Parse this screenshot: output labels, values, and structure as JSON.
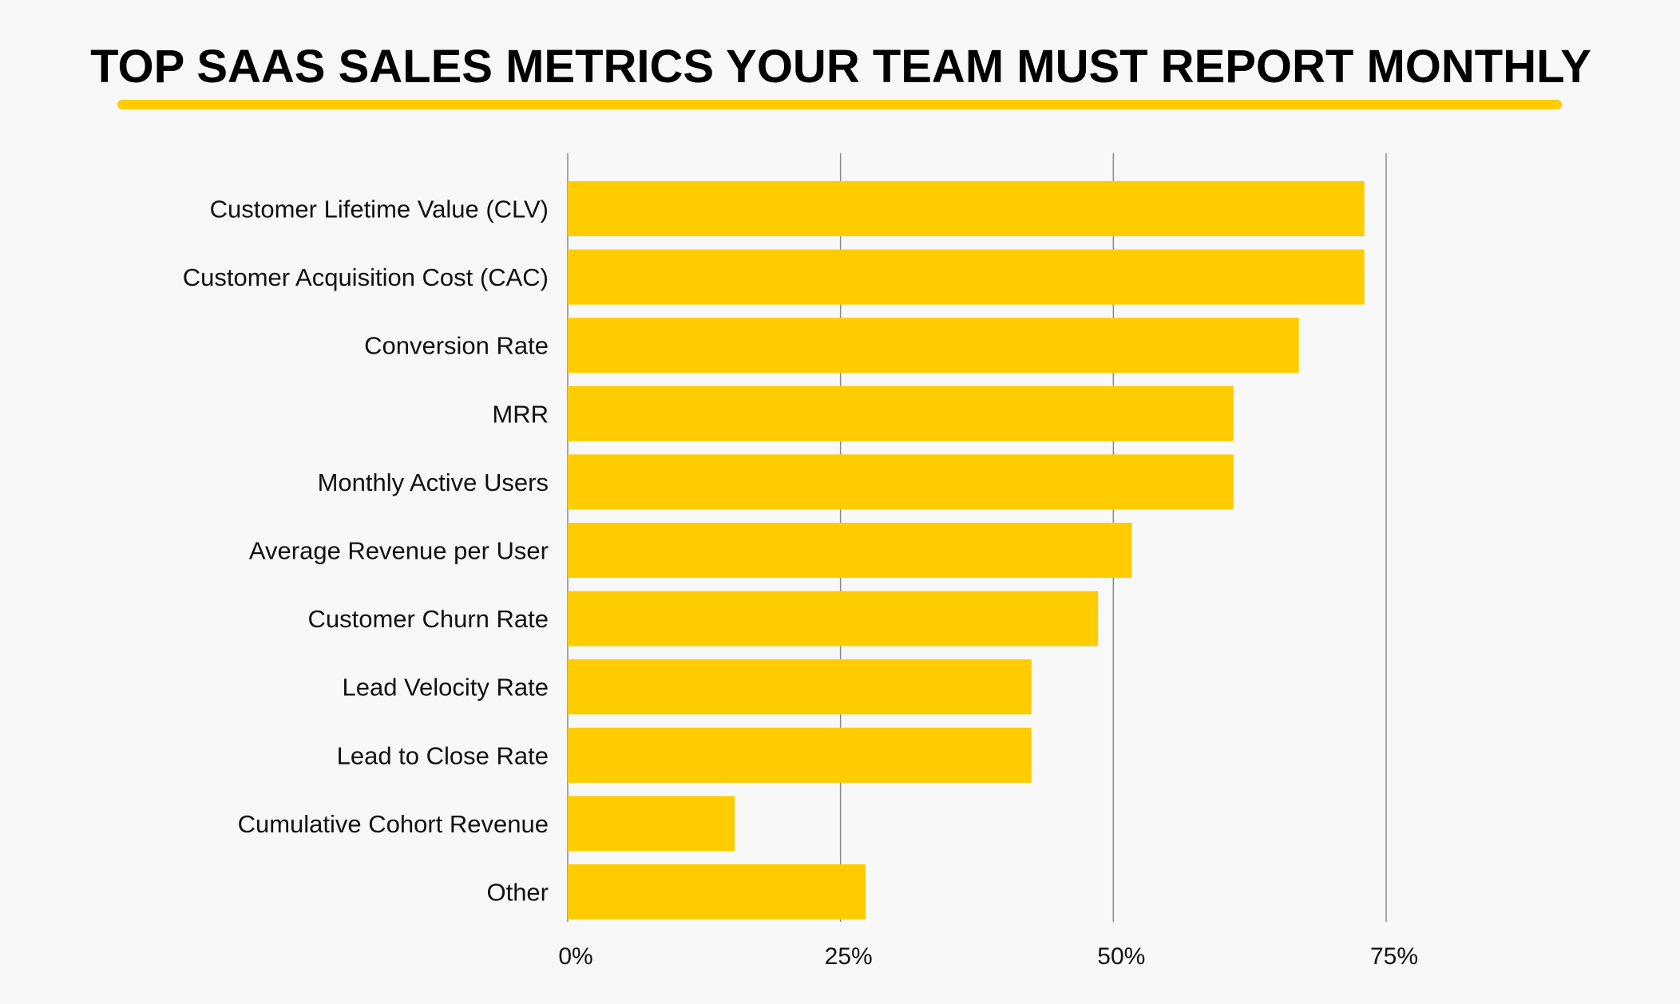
{
  "title": "TOP SAAS SALES METRICS YOUR TEAM MUST REPORT MONTHLY",
  "colors": {
    "background": "#f8f8f8",
    "bar": "#ffcc00",
    "underline": "#ffcc00",
    "gridline": "#8a8a8a",
    "title": "#000000",
    "label": "#111111"
  },
  "chart_data": {
    "type": "bar",
    "orientation": "horizontal",
    "title": "TOP SAAS SALES METRICS YOUR TEAM MUST REPORT MONTHLY",
    "xlabel": "",
    "ylabel": "",
    "categories": [
      "Customer Lifetime Value (CLV)",
      "Customer Acquisition Cost (CAC)",
      "Conversion Rate",
      "MRR",
      "Monthly Active Users",
      "Average Revenue per User",
      "Customer Churn Rate",
      "Lead Velocity Rate",
      "Lead to Close Rate",
      "Cumulative Cohort Revenue",
      "Other"
    ],
    "values": [
      73,
      73,
      67,
      61,
      61,
      51.7,
      48.6,
      42.5,
      42.5,
      15.3,
      27.3
    ],
    "xlim": [
      0,
      75
    ],
    "xticks": [
      0,
      25,
      50,
      75
    ],
    "xtick_labels": [
      "0%",
      "25%",
      "50%",
      "75%"
    ],
    "grid": true,
    "legend": "none"
  }
}
